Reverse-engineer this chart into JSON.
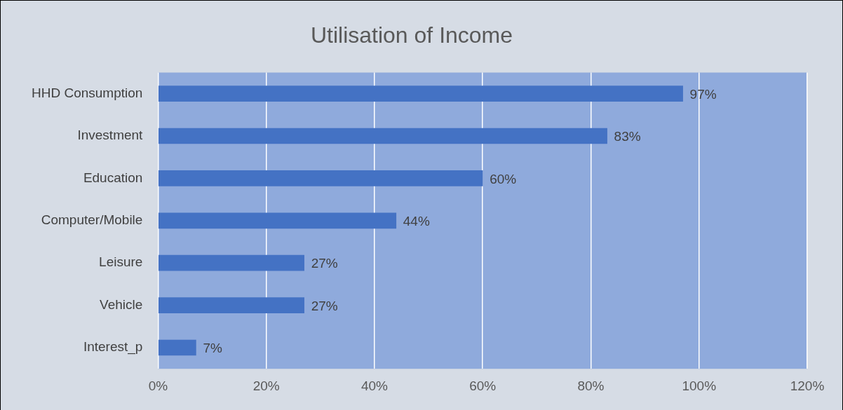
{
  "chart_data": {
    "type": "bar",
    "orientation": "horizontal",
    "title": "Utilisation of Income",
    "categories": [
      "HHD Consumption",
      "Investment",
      "Education",
      "Computer/Mobile",
      "Leisure",
      "Vehicle",
      "Interest_p"
    ],
    "values": [
      97,
      83,
      60,
      44,
      27,
      27,
      7
    ],
    "value_labels": [
      "97%",
      "83%",
      "60%",
      "44%",
      "27%",
      "27%",
      "7%"
    ],
    "color": "#4472c4",
    "xlim": [
      0,
      120
    ],
    "xticks": [
      {
        "value": 0,
        "label": "0%"
      },
      {
        "value": 20,
        "label": "20%"
      },
      {
        "value": 40,
        "label": "40%"
      },
      {
        "value": 60,
        "label": "60%"
      },
      {
        "value": 80,
        "label": "80%"
      },
      {
        "value": 100,
        "label": "100%"
      },
      {
        "value": 120,
        "label": "120%"
      }
    ],
    "grid": "x",
    "legend": false
  }
}
